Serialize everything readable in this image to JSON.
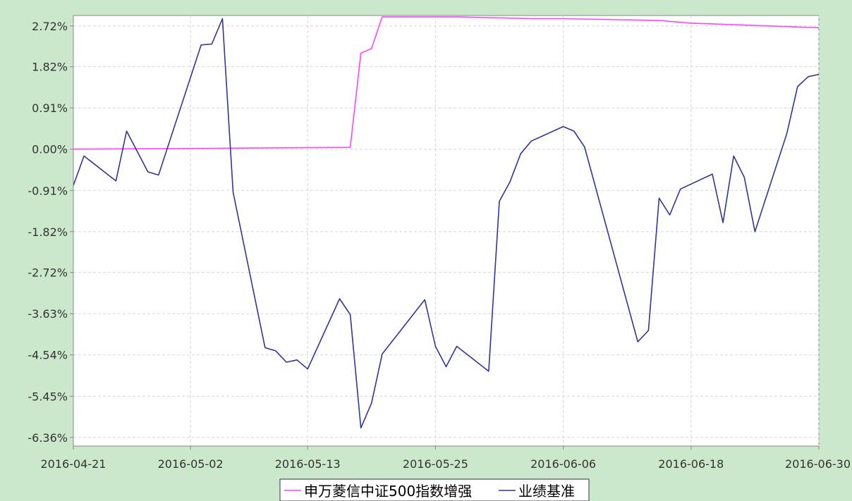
{
  "chart_data": {
    "type": "line",
    "y_tick_labels": [
      "2.72%",
      "1.82%",
      "0.91%",
      "0.00%",
      "-0.91%",
      "-1.82%",
      "-2.72%",
      "-3.63%",
      "-4.54%",
      "-5.45%",
      "-6.36%"
    ],
    "y_tick_values": [
      2.72,
      1.82,
      0.91,
      0.0,
      -0.91,
      -1.82,
      -2.72,
      -3.63,
      -4.54,
      -5.45,
      -6.36
    ],
    "ylim": [
      -6.55,
      2.95
    ],
    "x_tick_labels": [
      "2016-04-21",
      "2016-05-02",
      "2016-05-13",
      "2016-05-25",
      "2016-06-06",
      "2016-06-18",
      "2016-06-30"
    ],
    "xlim": [
      "2016-04-21",
      "2016-06-30"
    ],
    "grid": true,
    "legend_position": "bottom",
    "series": [
      {
        "name": "申万菱信中证500指数增强",
        "color": "#ff44ff",
        "points": [
          [
            "2016-04-21",
            0.0
          ],
          [
            "2016-05-05",
            0.02
          ],
          [
            "2016-05-17",
            0.04
          ],
          [
            "2016-05-18",
            2.12
          ],
          [
            "2016-05-19",
            2.22
          ],
          [
            "2016-05-20",
            2.92
          ],
          [
            "2016-05-27",
            2.92
          ],
          [
            "2016-06-03",
            2.88
          ],
          [
            "2016-06-06",
            2.88
          ],
          [
            "2016-06-15",
            2.84
          ],
          [
            "2016-06-18",
            2.78
          ],
          [
            "2016-06-30",
            2.68
          ]
        ]
      },
      {
        "name": "业绩基准",
        "color": "#333399",
        "points": [
          [
            "2016-04-21",
            -0.8
          ],
          [
            "2016-04-22",
            -0.15
          ],
          [
            "2016-04-25",
            -0.7
          ],
          [
            "2016-04-26",
            0.4
          ],
          [
            "2016-04-28",
            -0.5
          ],
          [
            "2016-04-29",
            -0.57
          ],
          [
            "2016-05-03",
            2.3
          ],
          [
            "2016-05-04",
            2.32
          ],
          [
            "2016-05-05",
            2.88
          ],
          [
            "2016-05-06",
            -0.95
          ],
          [
            "2016-05-09",
            -4.38
          ],
          [
            "2016-05-10",
            -4.45
          ],
          [
            "2016-05-11",
            -4.7
          ],
          [
            "2016-05-12",
            -4.65
          ],
          [
            "2016-05-13",
            -4.85
          ],
          [
            "2016-05-16",
            -3.3
          ],
          [
            "2016-05-17",
            -3.65
          ],
          [
            "2016-05-18",
            -6.15
          ],
          [
            "2016-05-19",
            -5.6
          ],
          [
            "2016-05-20",
            -4.52
          ],
          [
            "2016-05-24",
            -3.32
          ],
          [
            "2016-05-25",
            -4.35
          ],
          [
            "2016-05-26",
            -4.8
          ],
          [
            "2016-05-27",
            -4.35
          ],
          [
            "2016-05-30",
            -4.9
          ],
          [
            "2016-05-31",
            -1.15
          ],
          [
            "2016-06-01",
            -0.72
          ],
          [
            "2016-06-02",
            -0.1
          ],
          [
            "2016-06-03",
            0.18
          ],
          [
            "2016-06-06",
            0.5
          ],
          [
            "2016-06-07",
            0.4
          ],
          [
            "2016-06-08",
            0.05
          ],
          [
            "2016-06-13",
            -4.25
          ],
          [
            "2016-06-14",
            -4.0
          ],
          [
            "2016-06-15",
            -1.08
          ],
          [
            "2016-06-16",
            -1.45
          ],
          [
            "2016-06-17",
            -0.88
          ],
          [
            "2016-06-20",
            -0.55
          ],
          [
            "2016-06-21",
            -1.62
          ],
          [
            "2016-06-22",
            -0.15
          ],
          [
            "2016-06-23",
            -0.62
          ],
          [
            "2016-06-24",
            -1.82
          ],
          [
            "2016-06-27",
            0.35
          ],
          [
            "2016-06-28",
            1.38
          ],
          [
            "2016-06-29",
            1.6
          ],
          [
            "2016-06-30",
            1.65
          ]
        ]
      }
    ]
  }
}
